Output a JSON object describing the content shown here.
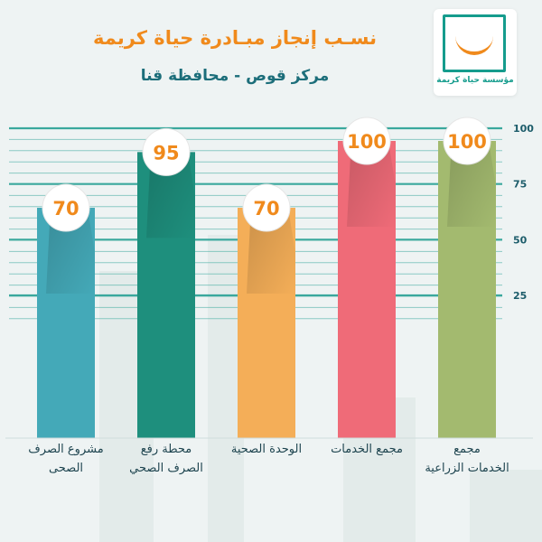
{
  "header": {
    "title": "نسـب إنجاز مبـادرة حياة كريمة",
    "subtitle": "مركز قوص - محافظة قنا"
  },
  "logo": {
    "text": "مؤسسة حياة كريمة",
    "icon": "smile-icon"
  },
  "colors": {
    "title": "#f08a1c",
    "subtitle": "#1c6e7a",
    "grid": "#3aa89d",
    "label": "#1f4550"
  },
  "chart_data": {
    "type": "bar",
    "categories": [
      "مشروع الصرف الصحى",
      "محطة رفع الصرف الصحي",
      "الوحدة الصحية",
      "مجمع الخدمات",
      "مجمع الخدمات الزراعية"
    ],
    "label_lines": [
      [
        "مشروع الصرف",
        "الصحى"
      ],
      [
        "محطة رفع",
        "الصرف الصحي"
      ],
      [
        "الوحدة الصحية"
      ],
      [
        "مجمع الخدمات"
      ],
      [
        "مجمع",
        "الخدمات الزراعية"
      ]
    ],
    "values": [
      70,
      95,
      70,
      100,
      100
    ],
    "value_labels": [
      "70",
      "95",
      "70",
      "100",
      "100"
    ],
    "colors": [
      "#44a9b8",
      "#1e8f7d",
      "#f4ae58",
      "#ef6b78",
      "#a3ba6f"
    ],
    "ylim": [
      0,
      100
    ],
    "yticks": [
      25,
      50,
      75,
      100
    ],
    "ytick_labels": [
      "25",
      "50",
      "75",
      "100"
    ],
    "xlabel": "",
    "ylabel": "",
    "grid": true
  }
}
